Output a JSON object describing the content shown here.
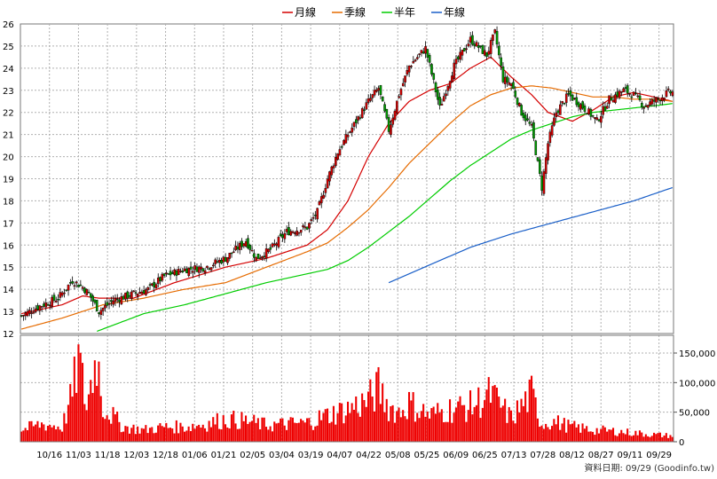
{
  "chart_data": {
    "type": "candlestick+line+bar",
    "legend": [
      {
        "name": "月線",
        "color": "#d40000"
      },
      {
        "name": "季線",
        "color": "#e66b00"
      },
      {
        "name": "半年",
        "color": "#00cc00"
      },
      {
        "name": "年線",
        "color": "#1a5fc8"
      }
    ],
    "price_axis": {
      "min": 12,
      "max": 26,
      "ticks": [
        12,
        13,
        14,
        15,
        16,
        17,
        18,
        19,
        20,
        21,
        22,
        23,
        24,
        25,
        26
      ]
    },
    "volume_axis": {
      "min": 0,
      "max": 180000,
      "ticks": [
        0,
        50000,
        100000,
        150000
      ],
      "tick_labels": [
        "0",
        "50,000",
        "100,000",
        "150,000"
      ]
    },
    "x_tick_labels": [
      "10/16",
      "11/03",
      "11/18",
      "12/03",
      "12/18",
      "01/06",
      "01/21",
      "02/05",
      "03/04",
      "03/19",
      "04/07",
      "04/22",
      "05/08",
      "05/25",
      "06/09",
      "06/25",
      "07/13",
      "07/28",
      "08/12",
      "08/27",
      "09/11",
      "09/29"
    ],
    "close_keypoints": [
      [
        0,
        12.8
      ],
      [
        8,
        13.2
      ],
      [
        18,
        13.6
      ],
      [
        25,
        14.4
      ],
      [
        30,
        14.1
      ],
      [
        33,
        13.8
      ],
      [
        38,
        13.0
      ],
      [
        45,
        13.5
      ],
      [
        55,
        13.8
      ],
      [
        62,
        14.0
      ],
      [
        70,
        14.6
      ],
      [
        80,
        14.9
      ],
      [
        90,
        15.0
      ],
      [
        100,
        15.4
      ],
      [
        110,
        16.2
      ],
      [
        115,
        15.4
      ],
      [
        122,
        15.8
      ],
      [
        130,
        16.6
      ],
      [
        140,
        16.8
      ],
      [
        145,
        17.5
      ],
      [
        150,
        19.0
      ],
      [
        155,
        20.2
      ],
      [
        160,
        21.0
      ],
      [
        170,
        22.5
      ],
      [
        175,
        23.1
      ],
      [
        180,
        21.2
      ],
      [
        185,
        22.8
      ],
      [
        190,
        24.1
      ],
      [
        198,
        24.9
      ],
      [
        205,
        22.2
      ],
      [
        212,
        24.1
      ],
      [
        220,
        25.3
      ],
      [
        228,
        24.6
      ],
      [
        232,
        25.6
      ],
      [
        236,
        23.5
      ],
      [
        240,
        23.3
      ],
      [
        245,
        22.0
      ],
      [
        250,
        21.3
      ],
      [
        255,
        18.6
      ],
      [
        258,
        20.6
      ],
      [
        262,
        22.0
      ],
      [
        268,
        22.8
      ],
      [
        272,
        22.5
      ],
      [
        278,
        22.0
      ],
      [
        282,
        21.6
      ],
      [
        288,
        22.6
      ],
      [
        295,
        23.0
      ],
      [
        300,
        22.8
      ],
      [
        305,
        22.3
      ],
      [
        312,
        22.6
      ],
      [
        317,
        22.9
      ],
      [
        319,
        22.9
      ]
    ],
    "volume_keypoints": [
      [
        0,
        20000
      ],
      [
        10,
        30000
      ],
      [
        20,
        25000
      ],
      [
        25,
        80000
      ],
      [
        28,
        140000
      ],
      [
        32,
        60000
      ],
      [
        37,
        150000
      ],
      [
        40,
        60000
      ],
      [
        50,
        25000
      ],
      [
        60,
        20000
      ],
      [
        70,
        25000
      ],
      [
        80,
        25000
      ],
      [
        90,
        30000
      ],
      [
        100,
        38000
      ],
      [
        110,
        35000
      ],
      [
        120,
        28000
      ],
      [
        130,
        30000
      ],
      [
        140,
        32000
      ],
      [
        150,
        45000
      ],
      [
        160,
        55000
      ],
      [
        170,
        70000
      ],
      [
        175,
        90000
      ],
      [
        180,
        60000
      ],
      [
        185,
        50000
      ],
      [
        190,
        65000
      ],
      [
        200,
        45000
      ],
      [
        210,
        55000
      ],
      [
        220,
        60000
      ],
      [
        230,
        80000
      ],
      [
        240,
        40000
      ],
      [
        250,
        80000
      ],
      [
        255,
        30000
      ],
      [
        260,
        35000
      ],
      [
        270,
        25000
      ],
      [
        280,
        20000
      ],
      [
        290,
        18000
      ],
      [
        300,
        15000
      ],
      [
        310,
        12000
      ],
      [
        319,
        10000
      ]
    ],
    "ma_keypoints": {
      "月線": [
        [
          0,
          12.9
        ],
        [
          20,
          13.3
        ],
        [
          30,
          13.7
        ],
        [
          38,
          13.6
        ],
        [
          55,
          13.6
        ],
        [
          75,
          14.3
        ],
        [
          100,
          15.0
        ],
        [
          120,
          15.4
        ],
        [
          140,
          16.0
        ],
        [
          150,
          16.7
        ],
        [
          160,
          18.0
        ],
        [
          170,
          20.0
        ],
        [
          180,
          21.5
        ],
        [
          190,
          22.5
        ],
        [
          200,
          23.0
        ],
        [
          210,
          23.3
        ],
        [
          220,
          24.0
        ],
        [
          230,
          24.5
        ],
        [
          240,
          23.6
        ],
        [
          250,
          22.8
        ],
        [
          258,
          22.0
        ],
        [
          270,
          21.6
        ],
        [
          280,
          22.1
        ],
        [
          290,
          22.7
        ],
        [
          300,
          22.9
        ],
        [
          310,
          22.7
        ],
        [
          319,
          22.5
        ]
      ],
      "季線": [
        [
          0,
          12.2
        ],
        [
          20,
          12.7
        ],
        [
          40,
          13.3
        ],
        [
          60,
          13.6
        ],
        [
          80,
          14.0
        ],
        [
          100,
          14.3
        ],
        [
          120,
          15.0
        ],
        [
          140,
          15.7
        ],
        [
          150,
          16.1
        ],
        [
          160,
          16.8
        ],
        [
          170,
          17.6
        ],
        [
          180,
          18.6
        ],
        [
          190,
          19.7
        ],
        [
          200,
          20.6
        ],
        [
          210,
          21.5
        ],
        [
          220,
          22.3
        ],
        [
          230,
          22.8
        ],
        [
          240,
          23.1
        ],
        [
          250,
          23.2
        ],
        [
          260,
          23.1
        ],
        [
          270,
          22.9
        ],
        [
          280,
          22.7
        ],
        [
          290,
          22.7
        ],
        [
          300,
          22.6
        ],
        [
          310,
          22.6
        ],
        [
          319,
          22.5
        ]
      ],
      "半年": [
        [
          37,
          12.1
        ],
        [
          60,
          12.9
        ],
        [
          80,
          13.3
        ],
        [
          100,
          13.8
        ],
        [
          120,
          14.3
        ],
        [
          140,
          14.7
        ],
        [
          150,
          14.9
        ],
        [
          160,
          15.3
        ],
        [
          170,
          15.9
        ],
        [
          180,
          16.6
        ],
        [
          190,
          17.3
        ],
        [
          200,
          18.1
        ],
        [
          210,
          18.9
        ],
        [
          220,
          19.6
        ],
        [
          230,
          20.2
        ],
        [
          240,
          20.8
        ],
        [
          250,
          21.2
        ],
        [
          260,
          21.5
        ],
        [
          270,
          21.8
        ],
        [
          280,
          22.0
        ],
        [
          290,
          22.1
        ],
        [
          300,
          22.2
        ],
        [
          310,
          22.3
        ],
        [
          319,
          22.4
        ]
      ],
      "年線": [
        [
          180,
          14.3
        ],
        [
          200,
          15.1
        ],
        [
          220,
          15.9
        ],
        [
          240,
          16.5
        ],
        [
          260,
          17.0
        ],
        [
          280,
          17.5
        ],
        [
          300,
          18.0
        ],
        [
          319,
          18.6
        ]
      ]
    }
  },
  "footer": "資料日期: 09/29 (Goodinfo.tw)"
}
